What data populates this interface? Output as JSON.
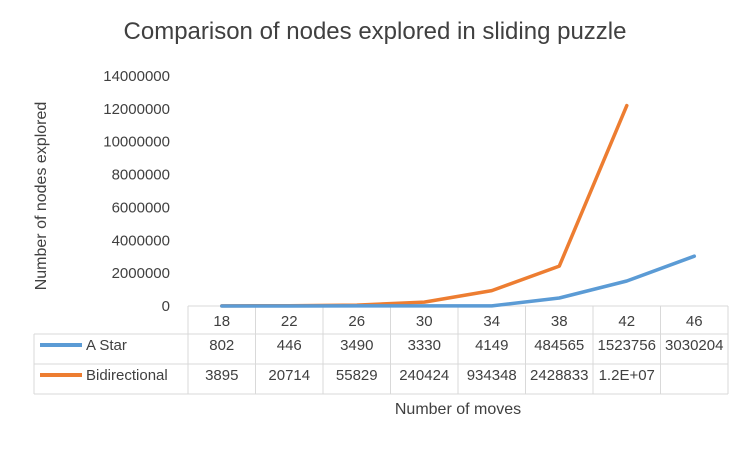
{
  "chart_data": {
    "type": "line",
    "title": "Comparison of nodes explored in sliding puzzle",
    "xlabel": "Number of moves",
    "ylabel": "Number of nodes explored",
    "categories": [
      "18",
      "22",
      "26",
      "30",
      "34",
      "38",
      "42",
      "46"
    ],
    "ylim": [
      0,
      14000000
    ],
    "yticks": [
      "0",
      "2000000",
      "4000000",
      "6000000",
      "8000000",
      "10000000",
      "12000000",
      "14000000"
    ],
    "grid": false,
    "legend": "data-table",
    "series": [
      {
        "name": "A Star",
        "color": "#5b9bd5",
        "values": [
          802,
          446,
          3490,
          3330,
          4149,
          484565,
          1523756,
          3030204
        ],
        "labels": [
          "802",
          "446",
          "3490",
          "3330",
          "4149",
          "484565",
          "1523756",
          "3030204"
        ]
      },
      {
        "name": "Bidirectional",
        "color": "#ed7d31",
        "values": [
          3895,
          20714,
          55829,
          240424,
          934348,
          2428833,
          12200000,
          null
        ],
        "labels": [
          "3895",
          "20714",
          "55829",
          "240424",
          "934348",
          "2428833",
          "1.2E+07",
          ""
        ]
      }
    ]
  }
}
